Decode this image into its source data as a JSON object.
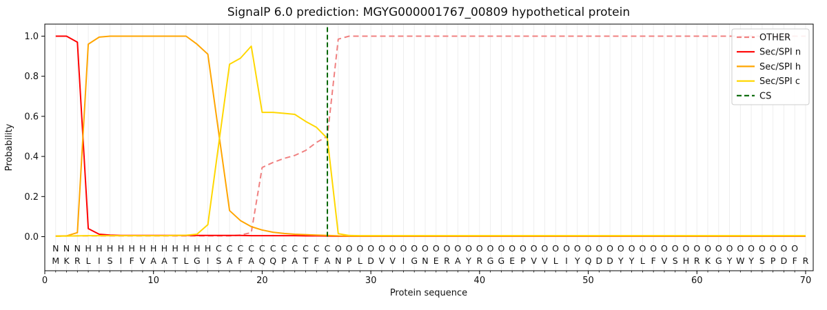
{
  "title": "SignalP 6.0 prediction: MGYG000001767_00809 hypothetical protein",
  "axes": {
    "xlabel": "Protein sequence",
    "ylabel": "Probability"
  },
  "legend": {
    "position": "upper right",
    "items": [
      {
        "label": "OTHER",
        "color": "#f08080",
        "dash": true
      },
      {
        "label": "Sec/SPI n",
        "color": "#ff0000",
        "dash": false
      },
      {
        "label": "Sec/SPI h",
        "color": "#ffa500",
        "dash": false
      },
      {
        "label": "Sec/SPI c",
        "color": "#ffd700",
        "dash": false
      },
      {
        "label": "CS",
        "color": "#006400",
        "dash": true
      }
    ]
  },
  "chart_data": {
    "type": "line",
    "x_start": 1,
    "xlim": [
      0,
      70.7
    ],
    "ylim": [
      -0.17,
      1.06
    ],
    "xticks": [
      0,
      10,
      20,
      30,
      40,
      50,
      60,
      70
    ],
    "yticks": [
      {
        "v": 0.0,
        "label": "0.0"
      },
      {
        "v": 0.2,
        "label": "0.2"
      },
      {
        "v": 0.4,
        "label": "0.4"
      },
      {
        "v": 0.6,
        "label": "0.6"
      },
      {
        "v": 0.8,
        "label": "0.8"
      },
      {
        "v": 1.0,
        "label": "1.0"
      }
    ],
    "grid": "vertical-per-residue",
    "legend_position": "upper right",
    "title": "SignalP 6.0 prediction: MGYG000001767_00809 hypothetical protein",
    "xlabel": "Protein sequence",
    "ylabel": "Probability",
    "series": [
      {
        "name": "OTHER",
        "color": "#f08080",
        "dash": "8 5",
        "width": 2,
        "values": [
          0.002,
          0.003,
          0.004,
          0.004,
          0.004,
          0.004,
          0.004,
          0.004,
          0.004,
          0.004,
          0.004,
          0.004,
          0.004,
          0.004,
          0.004,
          0.004,
          0.004,
          0.008,
          0.02,
          0.345,
          0.37,
          0.39,
          0.405,
          0.43,
          0.47,
          0.5,
          0.985,
          1.0,
          1.0,
          1.0,
          1.0,
          1.0,
          1.0,
          1.0,
          1.0,
          1.0,
          1.0,
          1.0,
          1.0,
          1.0,
          1.0,
          1.0,
          1.0,
          1.0,
          1.0,
          1.0,
          1.0,
          1.0,
          1.0,
          1.0,
          1.0,
          1.0,
          1.0,
          1.0,
          1.0,
          1.0,
          1.0,
          1.0,
          1.0,
          1.0,
          1.0,
          1.0,
          1.0,
          1.0,
          1.0,
          1.0,
          1.0,
          1.0,
          1.0,
          1.0
        ]
      },
      {
        "name": "Sec/SPI n",
        "color": "#ff0000",
        "dash": null,
        "width": 2,
        "values": [
          1.0,
          1.0,
          0.97,
          0.04,
          0.012,
          0.008,
          0.006,
          0.006,
          0.006,
          0.006,
          0.006,
          0.006,
          0.006,
          0.006,
          0.006,
          0.006,
          0.006,
          0.006,
          0.005,
          0.005,
          0.005,
          0.005,
          0.005,
          0.004,
          0.004,
          0.003,
          0.002,
          0.002,
          0.002,
          0.002,
          0.002,
          0.002,
          0.002,
          0.002,
          0.002,
          0.002,
          0.002,
          0.002,
          0.002,
          0.002,
          0.002,
          0.002,
          0.002,
          0.002,
          0.002,
          0.002,
          0.002,
          0.002,
          0.002,
          0.002,
          0.002,
          0.002,
          0.002,
          0.002,
          0.002,
          0.002,
          0.002,
          0.002,
          0.002,
          0.002,
          0.002,
          0.002,
          0.002,
          0.002,
          0.002,
          0.002,
          0.002,
          0.002,
          0.002,
          0.002
        ]
      },
      {
        "name": "Sec/SPI h",
        "color": "#ffa500",
        "dash": null,
        "width": 2,
        "values": [
          0.003,
          0.004,
          0.02,
          0.96,
          0.995,
          1.0,
          1.0,
          1.0,
          1.0,
          1.0,
          1.0,
          1.0,
          1.0,
          0.96,
          0.91,
          0.52,
          0.13,
          0.08,
          0.05,
          0.033,
          0.022,
          0.016,
          0.012,
          0.01,
          0.008,
          0.006,
          0.004,
          0.003,
          0.003,
          0.003,
          0.003,
          0.003,
          0.003,
          0.003,
          0.003,
          0.003,
          0.003,
          0.003,
          0.003,
          0.003,
          0.003,
          0.003,
          0.003,
          0.003,
          0.003,
          0.003,
          0.003,
          0.003,
          0.003,
          0.003,
          0.003,
          0.003,
          0.003,
          0.003,
          0.003,
          0.003,
          0.003,
          0.003,
          0.003,
          0.003,
          0.003,
          0.003,
          0.003,
          0.003,
          0.003,
          0.003,
          0.003,
          0.003,
          0.003,
          0.003
        ]
      },
      {
        "name": "Sec/SPI c",
        "color": "#ffd700",
        "dash": null,
        "width": 2,
        "values": [
          0.002,
          0.003,
          0.004,
          0.005,
          0.005,
          0.005,
          0.005,
          0.005,
          0.005,
          0.005,
          0.005,
          0.006,
          0.007,
          0.012,
          0.06,
          0.46,
          0.86,
          0.89,
          0.95,
          0.62,
          0.62,
          0.615,
          0.61,
          0.575,
          0.545,
          0.49,
          0.015,
          0.006,
          0.005,
          0.005,
          0.005,
          0.005,
          0.005,
          0.005,
          0.005,
          0.005,
          0.005,
          0.005,
          0.005,
          0.005,
          0.005,
          0.005,
          0.005,
          0.005,
          0.005,
          0.005,
          0.005,
          0.005,
          0.005,
          0.005,
          0.005,
          0.005,
          0.005,
          0.005,
          0.005,
          0.005,
          0.005,
          0.005,
          0.005,
          0.005,
          0.005,
          0.005,
          0.005,
          0.005,
          0.005,
          0.005,
          0.005,
          0.005,
          0.005,
          0.005
        ]
      }
    ],
    "cs_line": {
      "name": "CS",
      "x": 26,
      "color": "#006400",
      "dash": "7 4",
      "width": 2
    },
    "sequence": "MKRLISIFVAATLGISAFAQQPATFANPLDVVIGNERAYRGGEPVVLIYQDDYYLFVSHRKGYWYSPDFR",
    "region_labels": "NNNHHHHHHHHHHHHCCCCCCCCCCCOOOOOOOOOOOOOOOOOOOOOOOOOOOOOOOOOOOOOOOOOOO",
    "label_colors": {
      "N": "#ff0000",
      "H": "#ffa500",
      "C": "#ffd700",
      "O": "#999999"
    },
    "sequence_color": "#1f1f1f",
    "grid_color": "#ececec",
    "spine_color": "#000000"
  }
}
